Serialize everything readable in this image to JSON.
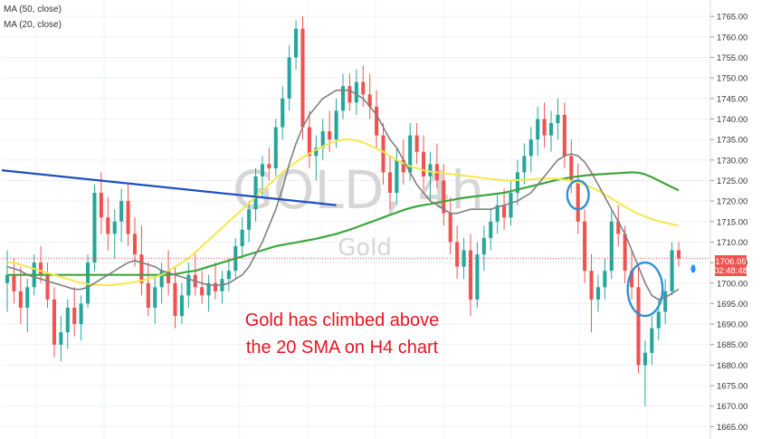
{
  "legend": {
    "ma50": "MA (50, close)",
    "ma20": "MA (20, close)"
  },
  "watermark": {
    "symbol": "GOLD, 4h",
    "name": "Gold"
  },
  "annotation": {
    "line1": "Gold has climbed above",
    "line2": "the 20 SMA on H4 chart"
  },
  "price_tag": {
    "price": "1706.05",
    "countdown": "02:48:48"
  },
  "colors": {
    "up": "#26a69a",
    "down": "#ef5350",
    "ma20": "#7f7f7f",
    "ma50": "#f5e84a",
    "ma100": "#3ca63c",
    "trendline": "#1e4fc2",
    "circle": "#2f8fd6",
    "price_tag": "#ef5350",
    "annotation": "#e8141f"
  },
  "chart_data": {
    "type": "candlestick",
    "ylim": [
      1662,
      1769
    ],
    "y_ticks": [
      1665,
      1670,
      1675,
      1680,
      1685,
      1690,
      1695,
      1700,
      1705,
      1710,
      1715,
      1720,
      1725,
      1730,
      1735,
      1740,
      1745,
      1750,
      1755,
      1760,
      1765
    ],
    "ohlc": [
      [
        1700,
        1708,
        1693,
        1702
      ],
      [
        1702,
        1706,
        1695,
        1698
      ],
      [
        1698,
        1704,
        1690,
        1694
      ],
      [
        1694,
        1701,
        1688,
        1699
      ],
      [
        1699,
        1707,
        1697,
        1705
      ],
      [
        1705,
        1709,
        1700,
        1702
      ],
      [
        1702,
        1705,
        1694,
        1696
      ],
      [
        1696,
        1699,
        1682,
        1685
      ],
      [
        1685,
        1692,
        1681,
        1688
      ],
      [
        1688,
        1696,
        1684,
        1694
      ],
      [
        1694,
        1699,
        1687,
        1690
      ],
      [
        1690,
        1697,
        1686,
        1695
      ],
      [
        1695,
        1707,
        1694,
        1705
      ],
      [
        1705,
        1724,
        1703,
        1722
      ],
      [
        1722,
        1727,
        1712,
        1716
      ],
      [
        1716,
        1721,
        1708,
        1712
      ],
      [
        1712,
        1718,
        1706,
        1715
      ],
      [
        1715,
        1723,
        1710,
        1720
      ],
      [
        1720,
        1724,
        1709,
        1712
      ],
      [
        1712,
        1716,
        1704,
        1707
      ],
      [
        1707,
        1714,
        1697,
        1700
      ],
      [
        1700,
        1705,
        1692,
        1694
      ],
      [
        1694,
        1702,
        1690,
        1699
      ],
      [
        1699,
        1705,
        1695,
        1703
      ],
      [
        1703,
        1708,
        1697,
        1700
      ],
      [
        1700,
        1704,
        1689,
        1692
      ],
      [
        1692,
        1700,
        1690,
        1697
      ],
      [
        1697,
        1705,
        1694,
        1702
      ],
      [
        1702,
        1707,
        1697,
        1699
      ],
      [
        1699,
        1703,
        1695,
        1697
      ],
      [
        1697,
        1702,
        1693,
        1700
      ],
      [
        1700,
        1705,
        1696,
        1698
      ],
      [
        1698,
        1703,
        1695,
        1701
      ],
      [
        1701,
        1706,
        1698,
        1703
      ],
      [
        1703,
        1711,
        1701,
        1709
      ],
      [
        1709,
        1716,
        1706,
        1713
      ],
      [
        1713,
        1720,
        1710,
        1718
      ],
      [
        1718,
        1728,
        1715,
        1726
      ],
      [
        1726,
        1731,
        1721,
        1729
      ],
      [
        1729,
        1733,
        1725,
        1728
      ],
      [
        1728,
        1740,
        1726,
        1738
      ],
      [
        1738,
        1748,
        1735,
        1745
      ],
      [
        1745,
        1758,
        1742,
        1755
      ],
      [
        1755,
        1764,
        1752,
        1762
      ],
      [
        1762,
        1765,
        1735,
        1738
      ],
      [
        1738,
        1742,
        1728,
        1731
      ],
      [
        1731,
        1736,
        1725,
        1733
      ],
      [
        1733,
        1740,
        1730,
        1737
      ],
      [
        1737,
        1742,
        1732,
        1735
      ],
      [
        1735,
        1745,
        1733,
        1742
      ],
      [
        1742,
        1751,
        1740,
        1748
      ],
      [
        1748,
        1751,
        1742,
        1744
      ],
      [
        1744,
        1752,
        1741,
        1749
      ],
      [
        1749,
        1753,
        1743,
        1746
      ],
      [
        1746,
        1751,
        1740,
        1743
      ],
      [
        1743,
        1747,
        1733,
        1736
      ],
      [
        1736,
        1739,
        1724,
        1727
      ],
      [
        1727,
        1731,
        1718,
        1722
      ],
      [
        1722,
        1733,
        1719,
        1730
      ],
      [
        1730,
        1735,
        1724,
        1727
      ],
      [
        1727,
        1739,
        1725,
        1736
      ],
      [
        1736,
        1739,
        1729,
        1732
      ],
      [
        1732,
        1736,
        1723,
        1726
      ],
      [
        1726,
        1732,
        1720,
        1729
      ],
      [
        1729,
        1734,
        1723,
        1725
      ],
      [
        1725,
        1729,
        1714,
        1717
      ],
      [
        1717,
        1721,
        1707,
        1710
      ],
      [
        1710,
        1714,
        1701,
        1704
      ],
      [
        1704,
        1711,
        1701,
        1708
      ],
      [
        1708,
        1712,
        1692,
        1696
      ],
      [
        1696,
        1710,
        1694,
        1707
      ],
      [
        1707,
        1714,
        1703,
        1711
      ],
      [
        1711,
        1718,
        1708,
        1715
      ],
      [
        1715,
        1722,
        1712,
        1719
      ],
      [
        1719,
        1723,
        1713,
        1716
      ],
      [
        1716,
        1725,
        1714,
        1722
      ],
      [
        1722,
        1730,
        1719,
        1727
      ],
      [
        1727,
        1734,
        1724,
        1731
      ],
      [
        1731,
        1738,
        1727,
        1735
      ],
      [
        1735,
        1743,
        1731,
        1740
      ],
      [
        1740,
        1744,
        1733,
        1736
      ],
      [
        1736,
        1742,
        1732,
        1739
      ],
      [
        1739,
        1745,
        1735,
        1741
      ],
      [
        1741,
        1744,
        1728,
        1731
      ],
      [
        1731,
        1735,
        1722,
        1725
      ],
      [
        1725,
        1729,
        1712,
        1715
      ],
      [
        1715,
        1718,
        1700,
        1703
      ],
      [
        1703,
        1707,
        1688,
        1696
      ],
      [
        1696,
        1702,
        1693,
        1699
      ],
      [
        1699,
        1706,
        1696,
        1703
      ],
      [
        1703,
        1718,
        1701,
        1715
      ],
      [
        1715,
        1719,
        1709,
        1712
      ],
      [
        1712,
        1714,
        1700,
        1703
      ],
      [
        1703,
        1708,
        1696,
        1699
      ],
      [
        1699,
        1704,
        1678,
        1680
      ],
      [
        1680,
        1686,
        1670,
        1683
      ],
      [
        1683,
        1692,
        1680,
        1689
      ],
      [
        1689,
        1696,
        1686,
        1693
      ],
      [
        1693,
        1701,
        1690,
        1698
      ],
      [
        1698,
        1710,
        1697,
        1708
      ],
      [
        1708,
        1710,
        1704,
        1706
      ]
    ],
    "ma20": [
      1704,
      1703.5,
      1703,
      1702,
      1701.5,
      1701,
      1700.5,
      1700,
      1699.5,
      1699,
      1698.5,
      1698.5,
      1699,
      1700,
      1701,
      1702,
      1703,
      1704,
      1705,
      1705.5,
      1705,
      1704.5,
      1704,
      1703,
      1702.5,
      1702,
      1701.5,
      1701,
      1700.5,
      1700,
      1699.5,
      1699.5,
      1699.5,
      1700,
      1701,
      1702,
      1704,
      1707,
      1710,
      1714,
      1718,
      1723,
      1729,
      1734,
      1738,
      1741,
      1743,
      1745,
      1746,
      1747,
      1747,
      1747,
      1746,
      1745,
      1743,
      1741,
      1738,
      1735,
      1733,
      1730,
      1727,
      1724,
      1722,
      1720,
      1719,
      1718,
      1717,
      1717,
      1717.5,
      1718,
      1718,
      1718,
      1718,
      1718.5,
      1719,
      1719.5,
      1720,
      1721,
      1722,
      1724,
      1726,
      1728,
      1730,
      1731,
      1731.5,
      1731,
      1729.5,
      1727,
      1724,
      1721,
      1718,
      1715,
      1712,
      1708,
      1704,
      1700,
      1697,
      1696,
      1696.5,
      1697.5,
      1698.5
    ],
    "ma50": [
      1705,
      1705,
      1704.5,
      1704,
      1703.5,
      1703,
      1702.5,
      1702,
      1701.5,
      1701,
      1700.5,
      1700,
      1699.8,
      1699.6,
      1699.5,
      1699.5,
      1699.6,
      1699.8,
      1700,
      1700.3,
      1700.6,
      1701,
      1701.5,
      1702,
      1703,
      1704,
      1705,
      1706,
      1707.5,
      1709,
      1710.5,
      1712,
      1713.5,
      1715,
      1716.5,
      1718,
      1719.5,
      1721,
      1722.5,
      1724,
      1725.5,
      1727,
      1728.3,
      1729.5,
      1730.6,
      1731.6,
      1732.5,
      1733.3,
      1734,
      1734.6,
      1735,
      1735,
      1734.8,
      1734.3,
      1733.6,
      1732.8,
      1732,
      1731,
      1730,
      1729.2,
      1728.5,
      1728,
      1727.5,
      1727.2,
      1727,
      1726.8,
      1726.6,
      1726.4,
      1726.2,
      1726,
      1725.8,
      1725.6,
      1725.4,
      1725.2,
      1725,
      1725,
      1725.1,
      1725.2,
      1725.3,
      1725.4,
      1725.5,
      1725.5,
      1725.4,
      1725.2,
      1724.9,
      1724.5,
      1724,
      1723.3,
      1722.5,
      1721.6,
      1720.6,
      1719.6,
      1718.6,
      1717.7,
      1716.9,
      1716.2,
      1715.6,
      1715.1,
      1714.7,
      1714.3,
      1714
    ],
    "ma100": [
      1702,
      1702,
      1702,
      1702,
      1702,
      1702,
      1702,
      1702,
      1702,
      1702,
      1702,
      1702,
      1702,
      1702,
      1702,
      1702,
      1702,
      1702,
      1702,
      1702,
      1702,
      1702,
      1702,
      1702,
      1702,
      1702.2,
      1702.5,
      1702.8,
      1703,
      1703.5,
      1704,
      1704.5,
      1705,
      1705.5,
      1706,
      1706.5,
      1707,
      1707.5,
      1708,
      1708.5,
      1709,
      1709.3,
      1709.6,
      1709.9,
      1710.2,
      1710.5,
      1710.8,
      1711.2,
      1711.6,
      1712,
      1712.5,
      1713,
      1713.6,
      1714.2,
      1714.8,
      1715.4,
      1716,
      1716.6,
      1717.2,
      1717.8,
      1718.3,
      1718.7,
      1719,
      1719.3,
      1719.6,
      1719.9,
      1720.2,
      1720.5,
      1720.8,
      1721,
      1721.2,
      1721.4,
      1721.6,
      1721.8,
      1722,
      1722.4,
      1722.8,
      1723.2,
      1723.6,
      1724,
      1724.4,
      1724.8,
      1725.2,
      1725.5,
      1725.8,
      1726,
      1726.2,
      1726.4,
      1726.5,
      1726.6,
      1726.7,
      1726.8,
      1726.9,
      1727,
      1726.9,
      1726.5,
      1725.8,
      1725,
      1724.2,
      1723.4,
      1722.6
    ],
    "trendline": [
      [
        0,
        1727.5
      ],
      [
        49,
        1719
      ]
    ],
    "circles": [
      {
        "center_index": 85,
        "price": 1721.5,
        "rx_bars": 1.6,
        "ry_price": 3.5
      },
      {
        "center_index": 95,
        "price": 1698.5,
        "rx_bars": 2.6,
        "ry_price": 6.5
      }
    ],
    "last_price": 1706.05,
    "extra_dot_price": 1703.5
  }
}
